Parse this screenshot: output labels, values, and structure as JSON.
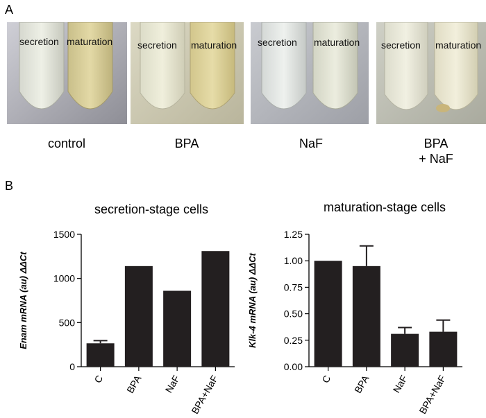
{
  "panel_a": {
    "label": "A",
    "photos": [
      {
        "condition": "control",
        "left_tube": "secretion",
        "right_tube": "maturation"
      },
      {
        "condition": "BPA",
        "left_tube": "secretion",
        "right_tube": "maturation"
      },
      {
        "condition": "NaF",
        "left_tube": "secretion",
        "right_tube": "maturation"
      },
      {
        "condition_line1": "BPA",
        "condition_line2": "+ NaF",
        "left_tube": "secretion",
        "right_tube": "maturation"
      }
    ]
  },
  "panel_b": {
    "label": "B"
  },
  "colors": {
    "bar": "#231f20",
    "axis": "#000000"
  },
  "chart_data": [
    {
      "type": "bar",
      "title": "secretion-stage cells",
      "xlabel": "",
      "ylabel": "Enam mRNA (au)  ΔΔCt",
      "categories": [
        "C",
        "BPA",
        "NaF",
        "BPA+NaF"
      ],
      "values": [
        265,
        1140,
        860,
        1310
      ],
      "errors": [
        30,
        0,
        0,
        0
      ],
      "ylim": [
        0,
        1500
      ],
      "yticks": [
        0,
        500,
        1000,
        1500
      ]
    },
    {
      "type": "bar",
      "title": "maturation-stage cells",
      "xlabel": "",
      "ylabel": "Klk-4 mRNA (au) ΔΔCt",
      "categories": [
        "C",
        "BPA",
        "NaF",
        "BPA+NaF"
      ],
      "values": [
        1.0,
        0.95,
        0.31,
        0.33
      ],
      "errors": [
        0,
        0.19,
        0.06,
        0.11
      ],
      "ylim": [
        0,
        1.25
      ],
      "yticks": [
        0.0,
        0.25,
        0.5,
        0.75,
        1.0,
        1.25
      ],
      "ytick_labels": [
        "0.00",
        "0.25",
        "0.50",
        "0.75",
        "1.00",
        "1.25"
      ]
    }
  ]
}
